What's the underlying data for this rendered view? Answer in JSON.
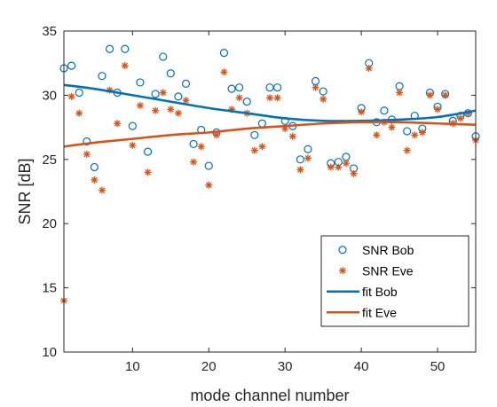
{
  "chart_data": {
    "type": "scatter",
    "title": "",
    "xlabel": "mode channel number",
    "ylabel": "SNR [dB]",
    "xlim": [
      1,
      55
    ],
    "ylim": [
      10,
      35
    ],
    "xticks": [
      10,
      20,
      30,
      40,
      50
    ],
    "yticks": [
      10,
      15,
      20,
      25,
      30,
      35
    ],
    "grid": false,
    "legend_location": "lower-right",
    "series": [
      {
        "name": "SNR Bob",
        "kind": "scatter",
        "marker": "circle",
        "color": "#0072BD",
        "x": [
          1,
          2,
          3,
          4,
          5,
          6,
          7,
          8,
          9,
          10,
          11,
          12,
          13,
          14,
          15,
          16,
          17,
          18,
          19,
          20,
          21,
          22,
          23,
          24,
          25,
          26,
          27,
          28,
          29,
          30,
          31,
          32,
          33,
          34,
          35,
          36,
          37,
          38,
          39,
          40,
          41,
          42,
          43,
          44,
          45,
          46,
          47,
          48,
          49,
          50,
          51,
          52,
          53,
          54,
          55
        ],
        "y": [
          32.1,
          32.3,
          30.2,
          26.4,
          24.4,
          31.5,
          33.6,
          30.2,
          33.6,
          27.6,
          31.0,
          25.6,
          30.1,
          33.0,
          31.7,
          29.9,
          30.9,
          26.2,
          27.3,
          24.5,
          27.1,
          33.3,
          30.5,
          30.6,
          29.5,
          26.9,
          27.8,
          30.6,
          30.6,
          28.0,
          27.6,
          25.0,
          25.8,
          31.1,
          30.3,
          24.7,
          24.8,
          25.2,
          24.3,
          29.0,
          32.5,
          27.9,
          28.8,
          28.1,
          30.7,
          27.2,
          28.4,
          27.4,
          30.2,
          29.1,
          30.1,
          28.0,
          28.4,
          28.6,
          26.8
        ]
      },
      {
        "name": "SNR Eve",
        "kind": "scatter",
        "marker": "asterisk",
        "color": "#D95319",
        "x": [
          1,
          2,
          3,
          4,
          5,
          6,
          7,
          8,
          9,
          10,
          11,
          12,
          13,
          14,
          15,
          16,
          17,
          18,
          19,
          20,
          21,
          22,
          23,
          24,
          25,
          26,
          27,
          28,
          29,
          30,
          31,
          32,
          33,
          34,
          35,
          36,
          37,
          38,
          39,
          40,
          41,
          42,
          43,
          44,
          45,
          46,
          47,
          48,
          49,
          50,
          51,
          52,
          53,
          54,
          55
        ],
        "y": [
          14.0,
          29.9,
          28.6,
          25.4,
          23.4,
          22.6,
          30.4,
          27.8,
          32.3,
          26.1,
          29.2,
          24.0,
          28.8,
          30.2,
          28.9,
          28.6,
          29.6,
          24.8,
          26.0,
          23.0,
          26.9,
          31.8,
          28.9,
          29.8,
          28.6,
          25.7,
          26.0,
          29.8,
          29.8,
          27.4,
          26.8,
          24.2,
          25.1,
          30.6,
          29.7,
          24.4,
          24.4,
          24.7,
          23.9,
          28.7,
          32.1,
          26.9,
          27.9,
          27.5,
          30.2,
          25.7,
          26.9,
          27.1,
          30.0,
          28.9,
          30.0,
          27.8,
          28.2,
          28.6,
          26.5
        ]
      },
      {
        "name": "fit Bob",
        "kind": "line",
        "color": "#0072BD",
        "x": [
          1,
          5,
          10,
          15,
          20,
          25,
          30,
          35,
          40,
          45,
          50,
          55
        ],
        "y": [
          30.8,
          30.5,
          30.0,
          29.5,
          29.0,
          28.6,
          28.2,
          28.0,
          28.0,
          28.1,
          28.3,
          28.8
        ]
      },
      {
        "name": "fit Eve",
        "kind": "line",
        "color": "#D95319",
        "x": [
          1,
          5,
          10,
          15,
          20,
          25,
          30,
          35,
          40,
          45,
          50,
          55
        ],
        "y": [
          26.0,
          26.3,
          26.6,
          26.9,
          27.1,
          27.4,
          27.6,
          27.8,
          27.9,
          27.9,
          27.8,
          27.7
        ]
      }
    ]
  }
}
